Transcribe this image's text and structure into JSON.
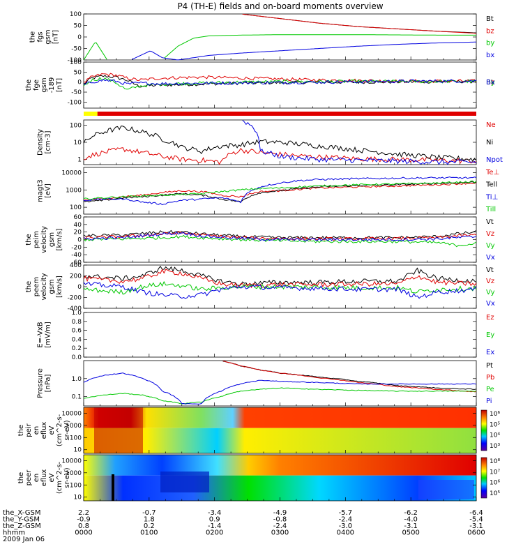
{
  "title": "P4 (TH-E) fields and on-board moments overview",
  "colors": {
    "black": "#000000",
    "red": "#e00000",
    "green": "#00c800",
    "blue": "#0000e0",
    "yellow": "#ffff00"
  },
  "chart_data": [
    {
      "id": "fgs",
      "type": "line",
      "ylabel": [
        "the",
        "fgs",
        "gsm",
        "[nT]"
      ],
      "ylim": [
        -100,
        100
      ],
      "yticks": [
        "100",
        "50",
        "0",
        "-50",
        "-100"
      ],
      "ytick_values": [
        100,
        50,
        0,
        -50,
        -100
      ],
      "x": [
        0.0,
        0.03,
        0.06,
        0.08,
        0.12,
        0.17,
        0.2,
        0.24,
        0.28,
        0.32,
        0.4,
        0.5,
        0.6,
        0.7,
        0.8,
        0.9,
        1.0
      ],
      "series": [
        {
          "name": "Bt",
          "color": "#000000",
          "values": [
            null,
            null,
            null,
            null,
            null,
            null,
            null,
            null,
            null,
            null,
            100,
            80,
            60,
            45,
            35,
            25,
            18
          ]
        },
        {
          "name": "bz",
          "color": "#e00000",
          "values": [
            null,
            null,
            null,
            null,
            null,
            null,
            null,
            null,
            null,
            null,
            100,
            80,
            60,
            45,
            35,
            25,
            16
          ]
        },
        {
          "name": "by",
          "color": "#00c800",
          "values": [
            -100,
            -20,
            -100,
            null,
            null,
            null,
            -100,
            -40,
            -5,
            5,
            8,
            10,
            10,
            10,
            9,
            8,
            8
          ]
        },
        {
          "name": "bx",
          "color": "#0000e0",
          "values": [
            null,
            null,
            null,
            null,
            -100,
            -60,
            -90,
            -100,
            -90,
            -80,
            -70,
            -60,
            -50,
            -40,
            -32,
            -26,
            -22
          ]
        }
      ]
    },
    {
      "id": "fge",
      "type": "line",
      "ylabel": [
        "the",
        "fge",
        "gsm",
        "-189",
        "[nT]"
      ],
      "ylim": [
        -130,
        100
      ],
      "yticks": [
        "100",
        "50",
        "0",
        "-50",
        "-100"
      ],
      "ytick_values": [
        100,
        50,
        0,
        -50,
        -100
      ],
      "x": [
        0.0,
        0.02,
        0.05,
        0.08,
        0.11,
        0.14,
        0.2,
        0.3,
        0.4,
        0.5,
        0.6,
        0.7,
        0.8,
        0.9,
        1.0
      ],
      "series": [
        {
          "name": "Bt",
          "color": "#000000",
          "values": [
            -10,
            20,
            30,
            25,
            10,
            -20,
            -15,
            -10,
            -5,
            -3,
            -1,
            0,
            1,
            2,
            3
          ]
        },
        {
          "name": "Bz",
          "color": "#e00000",
          "values": [
            -5,
            25,
            40,
            35,
            20,
            10,
            20,
            25,
            20,
            15,
            10,
            8,
            5,
            5,
            5
          ]
        },
        {
          "name": "By",
          "color": "#00c800",
          "values": [
            -20,
            10,
            20,
            0,
            -40,
            -20,
            -10,
            -5,
            0,
            2,
            3,
            3,
            3,
            3,
            3
          ]
        },
        {
          "name": "Bx",
          "color": "#0000e0",
          "values": [
            -15,
            0,
            10,
            5,
            -10,
            -5,
            -8,
            -6,
            -4,
            -2,
            0,
            2,
            4,
            5,
            6
          ]
        }
      ],
      "legend_overlap": "Bz By Bx Bt"
    },
    {
      "id": "mode_bar",
      "type": "bar",
      "segments": [
        {
          "from": 0.0,
          "to": 0.035,
          "color": "#ffff00"
        },
        {
          "from": 0.035,
          "to": 1.0,
          "color": "#e00000"
        }
      ]
    },
    {
      "id": "density",
      "type": "line",
      "scale": "log",
      "ylabel": [
        "Density",
        "[cm-3]"
      ],
      "ylim": [
        0.5,
        200
      ],
      "yticks": [
        "100",
        "10",
        "1"
      ],
      "ytick_values": [
        100,
        10,
        1
      ],
      "x": [
        0.0,
        0.05,
        0.1,
        0.15,
        0.2,
        0.25,
        0.3,
        0.35,
        0.4,
        0.45,
        0.5,
        0.55,
        0.6,
        0.7,
        0.8,
        0.9,
        1.0
      ],
      "series": [
        {
          "name": "Ne",
          "color": "#e00000",
          "values": [
            1.2,
            2.5,
            4.0,
            2.5,
            1.5,
            1.0,
            0.9,
            0.7,
            3.5,
            2.5,
            2.0,
            1.6,
            1.4,
            1.1,
            1.0,
            0.9,
            0.8
          ]
        },
        {
          "name": "Ni",
          "color": "#000000",
          "values": [
            8,
            40,
            70,
            40,
            15,
            5,
            3,
            6,
            7,
            11,
            10,
            8,
            6,
            3.5,
            2,
            1.3,
            1.0
          ]
        },
        {
          "name": "Npot",
          "color": "#0000e0",
          "values": [
            null,
            null,
            null,
            null,
            null,
            null,
            null,
            null,
            200,
            3,
            1.5,
            1.2,
            1.0,
            0.9,
            0.8,
            0.7,
            0.7
          ]
        }
      ]
    },
    {
      "id": "temp",
      "type": "line",
      "scale": "log",
      "ylabel": [
        "magt3",
        "[eV]"
      ],
      "ylim": [
        40,
        20000
      ],
      "yticks": [
        "10000",
        "1000",
        "100"
      ],
      "ytick_values": [
        10000,
        1000,
        100
      ],
      "x": [
        0.0,
        0.05,
        0.1,
        0.15,
        0.2,
        0.25,
        0.3,
        0.35,
        0.4,
        0.45,
        0.5,
        0.55,
        0.6,
        0.7,
        0.8,
        0.9,
        1.0
      ],
      "series": [
        {
          "name": "Te⊥",
          "color": "#e00000",
          "values": [
            250,
            300,
            400,
            500,
            700,
            900,
            800,
            500,
            400,
            800,
            900,
            1100,
            1300,
            1500,
            1700,
            2000,
            2500
          ]
        },
        {
          "name": "Tell",
          "color": "#000000",
          "values": [
            200,
            250,
            350,
            400,
            500,
            600,
            500,
            300,
            200,
            700,
            900,
            1200,
            1500,
            1800,
            2000,
            2400,
            2800
          ]
        },
        {
          "name": "Ti⊥",
          "color": "#0000e0",
          "values": [
            250,
            300,
            300,
            200,
            150,
            250,
            300,
            350,
            200,
            1500,
            2500,
            3500,
            4000,
            4500,
            4800,
            5000,
            5000
          ]
        },
        {
          "name": "Till",
          "color": "#00c800",
          "values": [
            300,
            350,
            400,
            450,
            500,
            550,
            600,
            800,
            1000,
            1200,
            1300,
            1500,
            1700,
            2000,
            2200,
            2500,
            3000
          ]
        }
      ]
    },
    {
      "id": "peim",
      "type": "line",
      "ylabel": [
        "the",
        "peim",
        "velocity",
        "gsm",
        "[km/s]"
      ],
      "ylim": [
        -60,
        60
      ],
      "yticks": [
        "60",
        "40",
        "20",
        "0",
        "-20",
        "-40",
        "-60"
      ],
      "ytick_values": [
        60,
        40,
        20,
        0,
        -20,
        -40,
        -60
      ],
      "x": [
        0.0,
        0.1,
        0.2,
        0.25,
        0.3,
        0.4,
        0.5,
        0.6,
        0.7,
        0.8,
        0.9,
        0.95,
        1.0
      ],
      "series": [
        {
          "name": "Vt",
          "color": "#000000",
          "values": [
            10,
            12,
            20,
            20,
            15,
            8,
            5,
            5,
            5,
            5,
            8,
            15,
            20
          ]
        },
        {
          "name": "Vz",
          "color": "#e00000",
          "values": [
            5,
            8,
            15,
            18,
            12,
            5,
            3,
            2,
            2,
            3,
            5,
            10,
            12
          ]
        },
        {
          "name": "Vy",
          "color": "#00c800",
          "values": [
            0,
            2,
            5,
            8,
            5,
            0,
            -3,
            -5,
            -5,
            -5,
            -8,
            -15,
            -10
          ]
        },
        {
          "name": "Vx",
          "color": "#0000e0",
          "values": [
            2,
            5,
            15,
            18,
            10,
            3,
            0,
            0,
            0,
            0,
            2,
            5,
            8
          ]
        }
      ]
    },
    {
      "id": "peem",
      "type": "line",
      "ylabel": [
        "the",
        "peem",
        "velocity",
        "gsm",
        "[km/s]"
      ],
      "ylim": [
        -400,
        400
      ],
      "yticks": [
        "400",
        "200",
        "0",
        "-200",
        "-400"
      ],
      "ytick_values": [
        400,
        200,
        0,
        -200,
        -400
      ],
      "x": [
        0.0,
        0.1,
        0.15,
        0.2,
        0.25,
        0.3,
        0.35,
        0.4,
        0.5,
        0.6,
        0.7,
        0.8,
        0.85,
        0.9,
        1.0
      ],
      "series": [
        {
          "name": "Vt",
          "color": "#000000",
          "values": [
            200,
            150,
            200,
            350,
            300,
            200,
            100,
            50,
            80,
            80,
            100,
            100,
            300,
            150,
            100
          ]
        },
        {
          "name": "Vz",
          "color": "#e00000",
          "values": [
            150,
            100,
            150,
            280,
            250,
            150,
            50,
            20,
            40,
            40,
            50,
            50,
            200,
            80,
            50
          ]
        },
        {
          "name": "Vy",
          "color": "#00c800",
          "values": [
            -50,
            -100,
            0,
            50,
            20,
            -50,
            -20,
            0,
            0,
            -10,
            -20,
            -20,
            -100,
            -50,
            -30
          ]
        },
        {
          "name": "Vx",
          "color": "#0000e0",
          "values": [
            50,
            0,
            -100,
            -150,
            -180,
            -150,
            -50,
            0,
            -20,
            -30,
            -50,
            -50,
            -200,
            -100,
            -50
          ]
        }
      ]
    },
    {
      "id": "efield",
      "type": "line",
      "ylabel": [
        "E=-VxB",
        "[mV/m]"
      ],
      "ylim": [
        0,
        1
      ],
      "yticks": [
        "1.0",
        "0.8",
        "0.6",
        "0.4",
        "0.2",
        "0.0"
      ],
      "ytick_values": [
        1.0,
        0.8,
        0.6,
        0.4,
        0.2,
        0.0
      ],
      "x": [],
      "series": [
        {
          "name": "Ez",
          "color": "#e00000",
          "values": []
        },
        {
          "name": "Ey",
          "color": "#00c800",
          "values": []
        },
        {
          "name": "Ex",
          "color": "#0000e0",
          "values": []
        }
      ]
    },
    {
      "id": "pressure",
      "type": "line",
      "scale": "log",
      "ylabel": [
        "Pressure",
        "[nPa]"
      ],
      "ylim": [
        0.03,
        10
      ],
      "yticks": [
        "1.0",
        "0.1"
      ],
      "ytick_values": [
        1.0,
        0.1
      ],
      "x": [
        0.0,
        0.05,
        0.1,
        0.15,
        0.2,
        0.25,
        0.3,
        0.35,
        0.4,
        0.45,
        0.5,
        0.6,
        0.7,
        0.8,
        0.9,
        1.0
      ],
      "series": [
        {
          "name": "Pt",
          "color": "#000000",
          "values": [
            null,
            null,
            null,
            null,
            null,
            null,
            null,
            10,
            5,
            3,
            2,
            1.2,
            0.7,
            0.4,
            0.3,
            0.25
          ]
        },
        {
          "name": "Pb",
          "color": "#e00000",
          "values": [
            null,
            null,
            null,
            null,
            null,
            null,
            null,
            10,
            5,
            3,
            2,
            1.1,
            0.6,
            0.35,
            0.25,
            0.18
          ]
        },
        {
          "name": "Pe",
          "color": "#00c800",
          "values": [
            0.08,
            0.12,
            0.15,
            0.12,
            0.06,
            0.04,
            0.05,
            0.1,
            0.2,
            0.25,
            0.3,
            0.25,
            0.22,
            0.2,
            0.2,
            0.2
          ]
        },
        {
          "name": "Pi",
          "color": "#0000e0",
          "values": [
            0.6,
            1.5,
            2.0,
            1.0,
            0.2,
            0.04,
            0.04,
            0.2,
            0.5,
            0.8,
            0.7,
            0.6,
            0.5,
            0.5,
            0.5,
            0.5
          ]
        }
      ]
    },
    {
      "id": "peir_spec",
      "type": "heatmap",
      "ylabel": [
        "the",
        "peir",
        "en",
        "eflux",
        "eV",
        "(cm^2-s-",
        "sr-eV)"
      ],
      "yscale": "log",
      "ylim": [
        5,
        30000
      ],
      "yticks": [
        "10000",
        "1000",
        "100",
        "10"
      ],
      "ytick_values": [
        10000,
        1000,
        100,
        10
      ],
      "colorbar_labels": [
        "10⁶",
        "10⁵",
        "10⁴",
        "10³"
      ]
    },
    {
      "id": "peer_spec",
      "type": "heatmap",
      "ylabel": [
        "the",
        "peer",
        "en",
        "eflux",
        "eV",
        "(cm^2-s-",
        "sr-eV)"
      ],
      "yscale": "log",
      "ylim": [
        5,
        30000
      ],
      "yticks": [
        "10000",
        "1000",
        "100",
        "10"
      ],
      "ytick_values": [
        10000,
        1000,
        100,
        10
      ],
      "colorbar_labels": [
        "10⁸",
        "10⁷",
        "10⁶",
        "10⁵"
      ]
    }
  ],
  "ephemeris": {
    "rows": [
      {
        "label": "the_X-GSM",
        "values": [
          "2.2",
          "-0.7",
          "-3.4",
          "-4.9",
          "-5.7",
          "-6.2",
          "-6.4"
        ]
      },
      {
        "label": "the_Y-GSM",
        "values": [
          "-0.9",
          "1.8",
          "0.9",
          "-0.8",
          "-2.4",
          "-4.0",
          "-5.4"
        ]
      },
      {
        "label": "the_Z-GSM",
        "values": [
          "0.8",
          "0.2",
          "-1.4",
          "-2.4",
          "-3.0",
          "-3.1",
          "-3.1"
        ]
      },
      {
        "label": "hhmm",
        "values": [
          "0000",
          "0100",
          "0200",
          "0300",
          "0400",
          "0500",
          "0600"
        ]
      }
    ],
    "date": "2009 Jan 06"
  }
}
